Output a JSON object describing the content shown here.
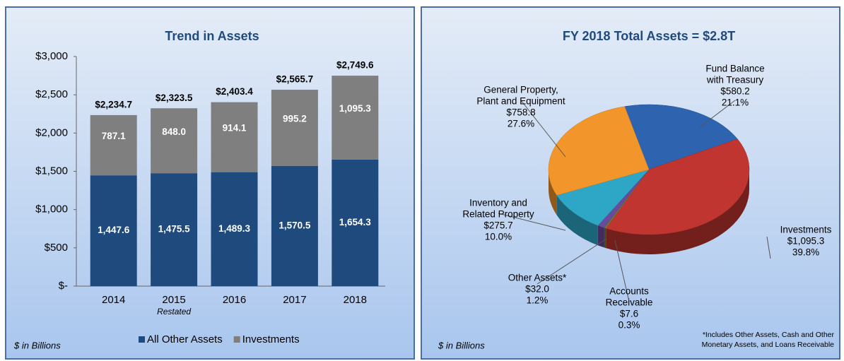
{
  "chart_data": [
    {
      "type": "bar",
      "stacked": true,
      "title": "Trend in Assets",
      "categories": [
        "2014",
        "2015",
        "2016",
        "2017",
        "2018"
      ],
      "category_notes": [
        null,
        "Restated",
        null,
        null,
        null
      ],
      "series": [
        {
          "name": "All Other Assets",
          "color": "#1f4a7e",
          "values": [
            1447.6,
            1475.5,
            1489.3,
            1570.5,
            1654.3
          ],
          "value_labels": [
            "1,447.6",
            "1,475.5",
            "1,489.3",
            "1,570.5",
            "1,654.3"
          ]
        },
        {
          "name": "Investments",
          "color": "#7f7f7f",
          "values": [
            787.1,
            848.0,
            914.1,
            995.2,
            1095.3
          ],
          "value_labels": [
            "787.1",
            "848.0",
            "914.1",
            "995.2",
            "1,095.3"
          ]
        }
      ],
      "totals": [
        2234.7,
        2323.5,
        2403.4,
        2565.7,
        2749.6
      ],
      "total_labels": [
        "$2,234.7",
        "$2,323.5",
        "$2,403.4",
        "$2,565.7",
        "$2,749.6"
      ],
      "ylim": [
        0,
        3000
      ],
      "yticks": [
        {
          "value": 0,
          "label": "$-"
        },
        {
          "value": 500,
          "label": "$500"
        },
        {
          "value": 1000,
          "label": "$1,000"
        },
        {
          "value": 1500,
          "label": "$1,500"
        },
        {
          "value": 2000,
          "label": "$2,000"
        },
        {
          "value": 2500,
          "label": "$2,500"
        },
        {
          "value": 3000,
          "label": "$3,000"
        }
      ],
      "legend": "bottom",
      "note": "$ in Billions"
    },
    {
      "type": "pie",
      "title": "FY 2018 Total Assets = $2.8T",
      "labels": [
        [
          "Fund Balance",
          "with Treasury"
        ],
        [
          "Investments"
        ],
        [
          "Accounts",
          "Receivable"
        ],
        [
          "Other Assets*"
        ],
        [
          "Inventory and",
          "Related Property"
        ],
        [
          "General Property,",
          "Plant and Equipment"
        ]
      ],
      "values": [
        580.2,
        1095.3,
        7.6,
        32.0,
        275.7,
        758.8
      ],
      "value_labels": [
        "$580.2",
        "$1,095.3",
        "$7.6",
        "$32.0",
        "$275.7",
        "$758.8"
      ],
      "percents": [
        21.1,
        39.8,
        0.3,
        1.2,
        10.0,
        27.6
      ],
      "percent_labels": [
        "21.1%",
        "39.8%",
        "0.3%",
        "1.2%",
        "10.0%",
        "27.6%"
      ],
      "colors": [
        "#2e63b0",
        "#c0352f",
        "#6e7d2c",
        "#6a4a9c",
        "#2ea6c6",
        "#f2952a"
      ],
      "note": "$ in Billions",
      "footnote": [
        "*Includes Other Assets, Cash and Other",
        "Monetary Assets, and Loans Receivable"
      ]
    }
  ]
}
